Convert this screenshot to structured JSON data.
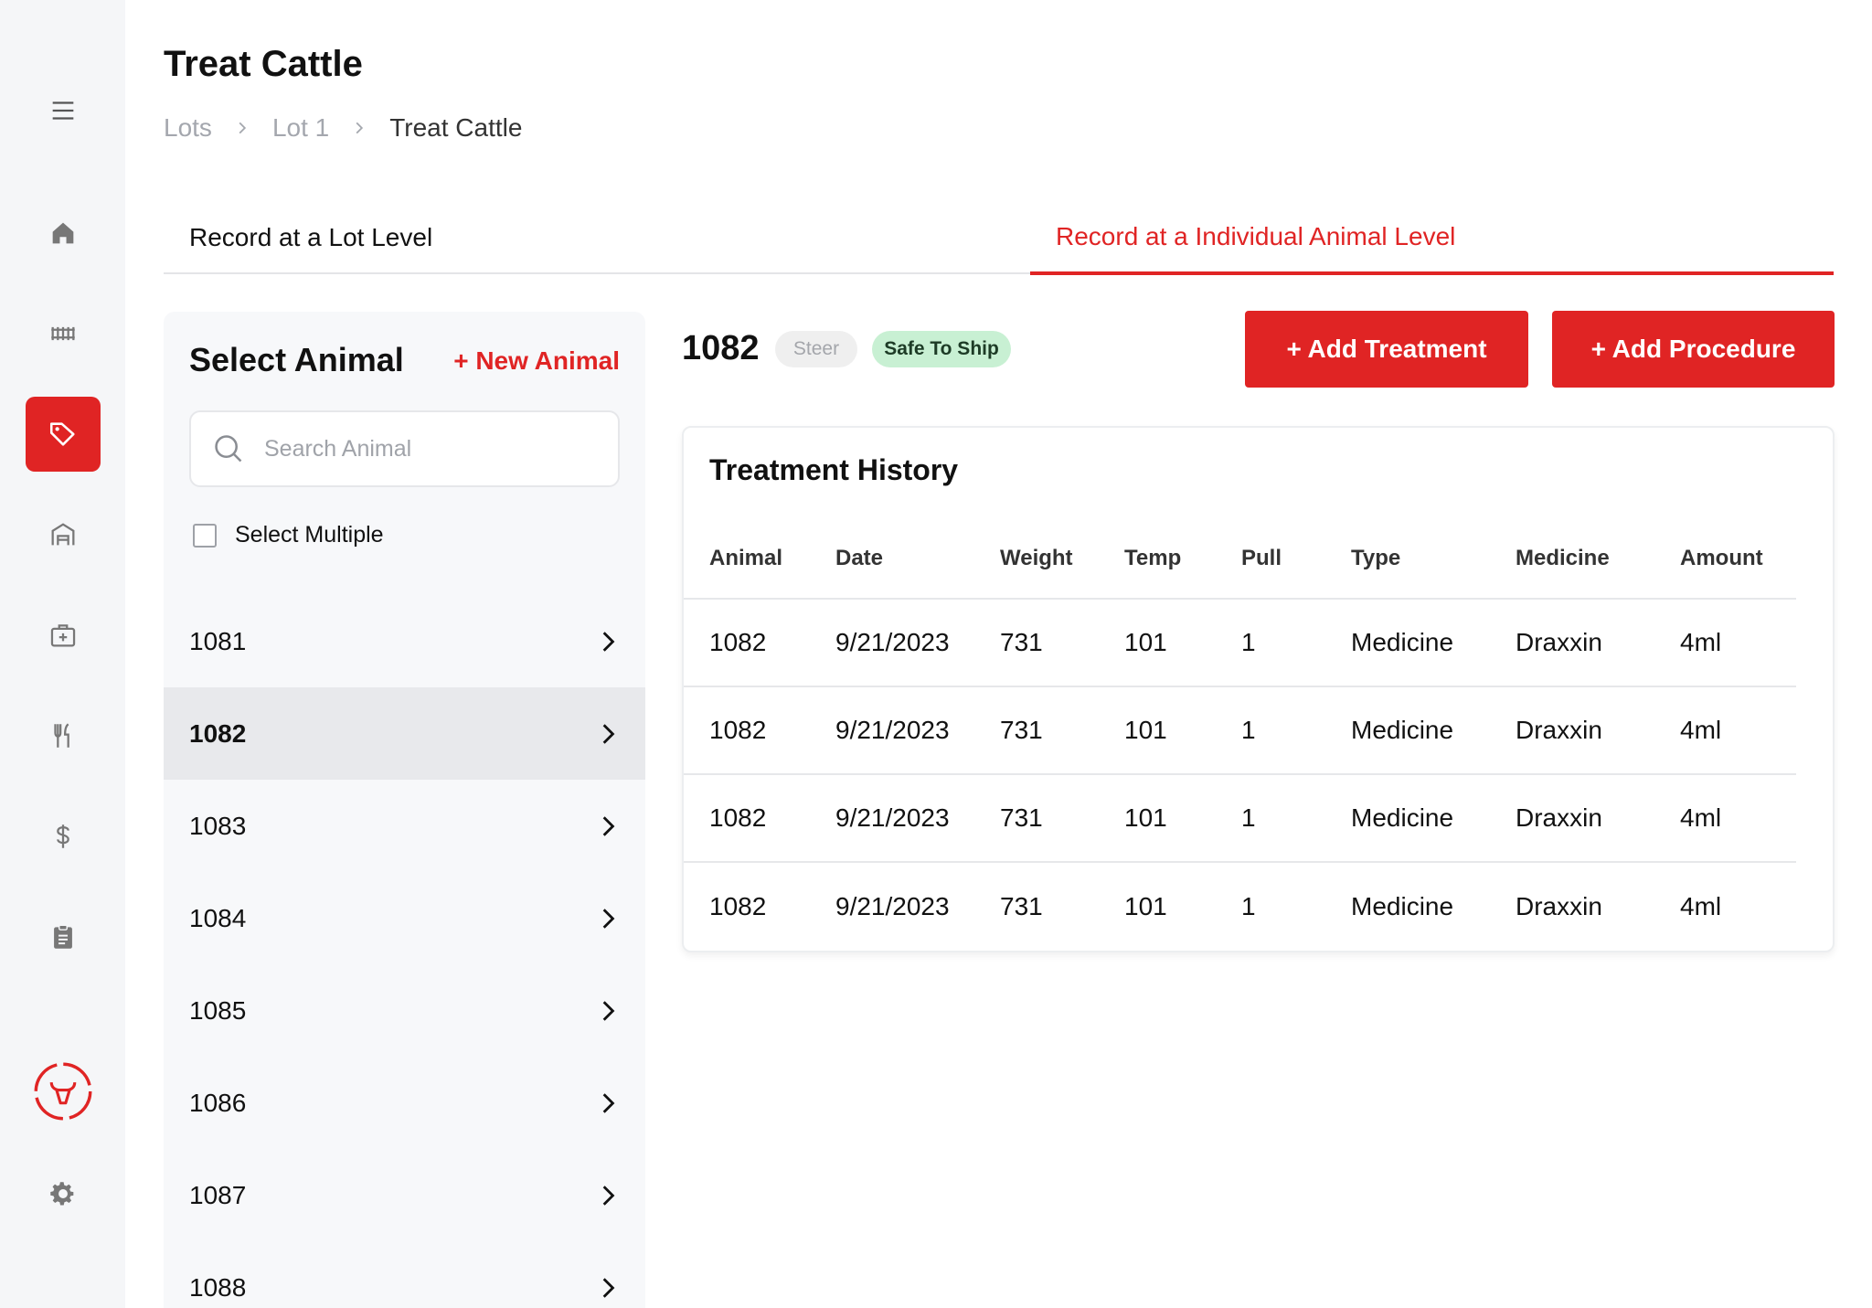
{
  "page": {
    "title": "Treat Cattle"
  },
  "breadcrumb": [
    {
      "label": "Lots"
    },
    {
      "label": "Lot 1"
    },
    {
      "label": "Treat Cattle"
    }
  ],
  "sidebar": {
    "items": [
      {
        "icon": "menu-icon"
      },
      {
        "icon": "home-icon"
      },
      {
        "icon": "fence-icon"
      },
      {
        "icon": "tag-icon",
        "active": true
      },
      {
        "icon": "barn-icon"
      },
      {
        "icon": "medical-kit-icon"
      },
      {
        "icon": "utensils-icon"
      },
      {
        "icon": "dollar-icon"
      },
      {
        "icon": "clipboard-icon"
      },
      {
        "icon": "bull-logo-icon"
      },
      {
        "icon": "gear-icon"
      }
    ]
  },
  "tabs": [
    {
      "label": "Record at a Lot Level",
      "active": false
    },
    {
      "label": "Record at a Individual Animal Level",
      "active": true
    }
  ],
  "select_panel": {
    "title": "Select Animal",
    "new_animal_label": "+ New Animal",
    "search_placeholder": "Search Animal",
    "select_multiple_label": "Select Multiple",
    "animals": [
      {
        "id": "1081",
        "selected": false
      },
      {
        "id": "1082",
        "selected": true
      },
      {
        "id": "1083",
        "selected": false
      },
      {
        "id": "1084",
        "selected": false
      },
      {
        "id": "1085",
        "selected": false
      },
      {
        "id": "1086",
        "selected": false
      },
      {
        "id": "1087",
        "selected": false
      },
      {
        "id": "1088",
        "selected": false
      }
    ]
  },
  "animal_detail": {
    "id": "1082",
    "type_badge": "Steer",
    "status_badge": "Safe To Ship",
    "add_treatment_label": "+ Add Treatment",
    "add_procedure_label": "+ Add Procedure"
  },
  "treatment_history": {
    "title": "Treatment History",
    "columns": [
      "Animal",
      "Date",
      "Weight",
      "Temp",
      "Pull",
      "Type",
      "Medicine",
      "Amount"
    ],
    "rows": [
      [
        "1082",
        "9/21/2023",
        "731",
        "101",
        "1",
        "Medicine",
        "Draxxin",
        "4ml"
      ],
      [
        "1082",
        "9/21/2023",
        "731",
        "101",
        "1",
        "Medicine",
        "Draxxin",
        "4ml"
      ],
      [
        "1082",
        "9/21/2023",
        "731",
        "101",
        "1",
        "Medicine",
        "Draxxin",
        "4ml"
      ],
      [
        "1082",
        "9/21/2023",
        "731",
        "101",
        "1",
        "Medicine",
        "Draxxin",
        "4ml"
      ]
    ]
  },
  "colors": {
    "accent": "#e02424",
    "sidebar_bg": "#f5f6f8",
    "safe_badge_bg": "#c8f0d3"
  }
}
